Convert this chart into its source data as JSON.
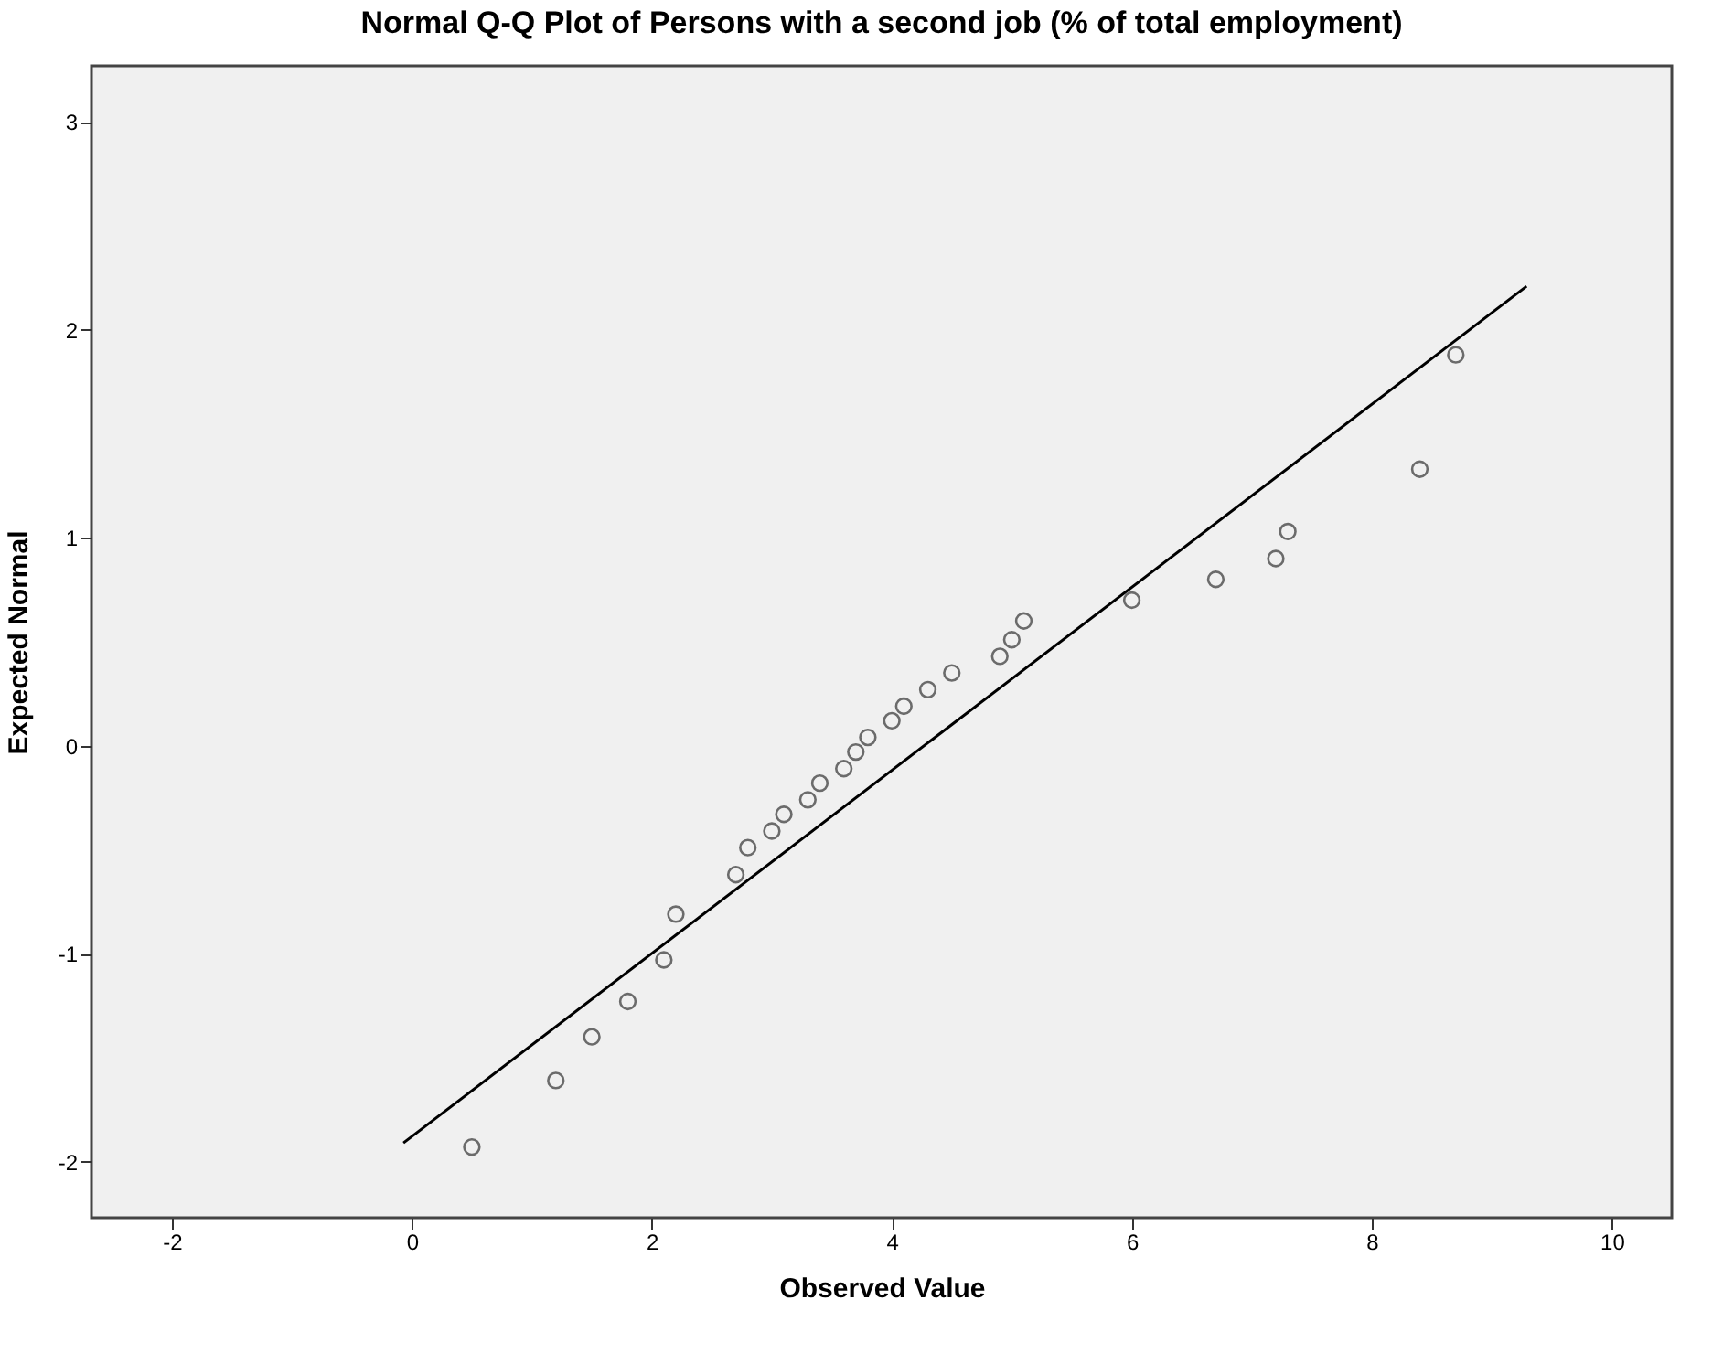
{
  "chart_data": {
    "type": "scatter",
    "title": "Normal Q-Q Plot of Persons with a second job (% of total employment)",
    "xlabel": "Observed Value",
    "ylabel": "Expected Normal",
    "xlim": [
      -2.67,
      10.5
    ],
    "xticks": [
      -2,
      0,
      2,
      4,
      6,
      8,
      10
    ],
    "ylim": [
      -2.27,
      3.27
    ],
    "yticks": [
      -2,
      -1,
      0,
      1,
      2,
      3
    ],
    "series": [
      {
        "marker": "circle",
        "color": "#333333",
        "x": [
          0.5,
          1.2,
          1.5,
          1.8,
          2.1,
          2.2,
          2.7,
          2.8,
          3.0,
          3.1,
          3.3,
          3.4,
          3.6,
          3.7,
          3.8,
          4.0,
          4.1,
          4.3,
          4.5,
          4.9,
          5.0,
          5.1,
          6.0,
          6.7,
          7.2,
          7.3,
          8.4,
          8.7
        ],
        "values": [
          -1.93,
          -1.61,
          -1.4,
          -1.23,
          -1.03,
          -0.81,
          -0.62,
          -0.49,
          -0.41,
          -0.33,
          -0.26,
          -0.18,
          -0.11,
          -0.03,
          0.04,
          0.12,
          0.19,
          0.27,
          0.35,
          0.43,
          0.51,
          0.6,
          0.7,
          0.8,
          0.9,
          1.03,
          1.33,
          1.88
        ]
      },
      {
        "type": "line",
        "color": "#000000",
        "x": [
          -0.07,
          9.29
        ],
        "values": [
          -1.91,
          2.21
        ]
      }
    ]
  }
}
